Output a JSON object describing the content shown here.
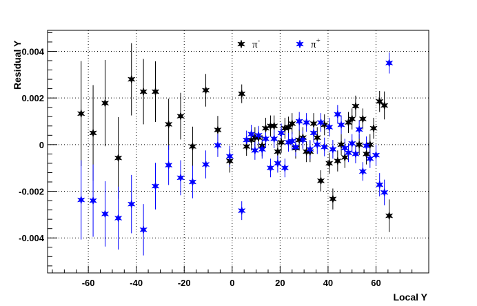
{
  "chart_data": {
    "type": "scatter",
    "xlabel": "Local Y",
    "ylabel": "Residual Y",
    "xlim": [
      -77,
      82
    ],
    "ylim": [
      -0.0055,
      0.0049
    ],
    "x_ticks": [
      -60,
      -40,
      -20,
      0,
      20,
      40,
      60
    ],
    "x_tick_labels": [
      "-60",
      "-40",
      "-20",
      "0",
      "20",
      "40",
      "60"
    ],
    "y_ticks": [
      -0.004,
      -0.002,
      0,
      0.002,
      0.004
    ],
    "y_tick_labels": [
      "-0.004",
      "-0.002",
      "0",
      "0.002",
      "0.004"
    ],
    "grid": true,
    "legend_position": "top-center",
    "series": [
      {
        "name": "π⁻",
        "legend": {
          "base": "π",
          "sup": "-"
        },
        "color": "#000000",
        "marker": "star",
        "points": [
          {
            "x": -63,
            "y": 0.00133,
            "err": 0.00225
          },
          {
            "x": -58,
            "y": 0.0005,
            "err": 0.00205
          },
          {
            "x": -53,
            "y": 0.00178,
            "err": 0.00185
          },
          {
            "x": -47.5,
            "y": -0.00057,
            "err": 0.00175
          },
          {
            "x": -42,
            "y": 0.0028,
            "err": 0.00155
          },
          {
            "x": -37,
            "y": 0.00227,
            "err": 0.0014
          },
          {
            "x": -32,
            "y": 0.00227,
            "err": 0.0013
          },
          {
            "x": -26.5,
            "y": 0.00087,
            "err": 0.0011
          },
          {
            "x": -21.5,
            "y": 0.00122,
            "err": 0.001
          },
          {
            "x": -16.5,
            "y": -8e-05,
            "err": 0.00085
          },
          {
            "x": -11,
            "y": 0.00233,
            "err": 0.0007
          },
          {
            "x": -6,
            "y": 0.00063,
            "err": 0.0006
          },
          {
            "x": -1,
            "y": -0.0007,
            "err": 0.0005
          },
          {
            "x": 4,
            "y": 0.00218,
            "err": 0.0004
          },
          {
            "x": 6,
            "y": -8e-05,
            "err": 0.0004
          },
          {
            "x": 8,
            "y": 0.0002,
            "err": 0.00045
          },
          {
            "x": 9.5,
            "y": 0.0003,
            "err": 0.00045
          },
          {
            "x": 11,
            "y": 0.0003,
            "err": 0.00045
          },
          {
            "x": 12.5,
            "y": -5e-05,
            "err": 0.00045
          },
          {
            "x": 14,
            "y": 0.0007,
            "err": 0.00045
          },
          {
            "x": 16,
            "y": 0.0008,
            "err": 0.00045
          },
          {
            "x": 17.5,
            "y": 0.0008,
            "err": 0.00045
          },
          {
            "x": 19,
            "y": -0.0003,
            "err": 0.00045
          },
          {
            "x": 20.5,
            "y": 0.0001,
            "err": 0.00045
          },
          {
            "x": 22,
            "y": 0.0007,
            "err": 0.00045
          },
          {
            "x": 23.5,
            "y": 0.00075,
            "err": 0.00045
          },
          {
            "x": 25,
            "y": 0.0009,
            "err": 0.00045
          },
          {
            "x": 26.5,
            "y": -0.00015,
            "err": 0.00045
          },
          {
            "x": 28,
            "y": 0.0002,
            "err": 0.00045
          },
          {
            "x": 29.5,
            "y": 0.0003,
            "err": 0.00045
          },
          {
            "x": 31,
            "y": -0.0003,
            "err": 0.00045
          },
          {
            "x": 32.5,
            "y": -0.0003,
            "err": 0.00045
          },
          {
            "x": 34,
            "y": 0.0009,
            "err": 0.00045
          },
          {
            "x": 35.5,
            "y": 0.0003,
            "err": 0.00045
          },
          {
            "x": 37,
            "y": -0.00155,
            "err": 0.00045
          },
          {
            "x": 38.5,
            "y": 0.00085,
            "err": 0.00045
          },
          {
            "x": 40.5,
            "y": -0.0008,
            "err": 0.00045
          },
          {
            "x": 42,
            "y": -0.00233,
            "err": 0.00045
          },
          {
            "x": 44,
            "y": -0.0007,
            "err": 0.00045
          },
          {
            "x": 45.5,
            "y": 0.0,
            "err": 0.00045
          },
          {
            "x": 47,
            "y": -0.00055,
            "err": 0.00045
          },
          {
            "x": 48.5,
            "y": 0.00095,
            "err": 0.00045
          },
          {
            "x": 50,
            "y": 0.0011,
            "err": 0.00045
          },
          {
            "x": 51.5,
            "y": 0.00165,
            "err": 0.00045
          },
          {
            "x": 53,
            "y": 0.0,
            "err": 0.00045
          },
          {
            "x": 54.5,
            "y": 0.0011,
            "err": 0.00045
          },
          {
            "x": 56,
            "y": -0.0004,
            "err": 0.00045
          },
          {
            "x": 57.5,
            "y": 0.0,
            "err": 0.00045
          },
          {
            "x": 59,
            "y": 0.0007,
            "err": 0.00045
          },
          {
            "x": 61.5,
            "y": 0.00185,
            "err": 0.00045
          },
          {
            "x": 63.5,
            "y": 0.00168,
            "err": 0.0006
          },
          {
            "x": 65.5,
            "y": -0.00305,
            "err": 0.0007
          }
        ]
      },
      {
        "name": "π⁺",
        "legend": {
          "base": "π",
          "sup": "+"
        },
        "color": "#0000ff",
        "marker": "star",
        "points": [
          {
            "x": -63,
            "y": -0.00237,
            "err": 0.0017
          },
          {
            "x": -58,
            "y": -0.0024,
            "err": 0.00155
          },
          {
            "x": -53,
            "y": -0.00297,
            "err": 0.0014
          },
          {
            "x": -47.5,
            "y": -0.00315,
            "err": 0.00135
          },
          {
            "x": -42,
            "y": -0.00255,
            "err": 0.00125
          },
          {
            "x": -37,
            "y": -0.00365,
            "err": 0.0011
          },
          {
            "x": -32,
            "y": -0.00178,
            "err": 0.001
          },
          {
            "x": -26.5,
            "y": -0.00088,
            "err": 0.00085
          },
          {
            "x": -21.5,
            "y": -0.00142,
            "err": 0.00075
          },
          {
            "x": -16.5,
            "y": -0.0016,
            "err": 0.0007
          },
          {
            "x": -11,
            "y": -0.00085,
            "err": 0.0006
          },
          {
            "x": -6,
            "y": -3e-05,
            "err": 0.0005
          },
          {
            "x": -1,
            "y": -0.0005,
            "err": 0.00045
          },
          {
            "x": 4,
            "y": -0.00283,
            "err": 0.0004
          },
          {
            "x": 6,
            "y": 0.0002,
            "err": 0.0004
          },
          {
            "x": 8,
            "y": 0.00045,
            "err": 0.0004
          },
          {
            "x": 9.5,
            "y": -0.00025,
            "err": 0.0004
          },
          {
            "x": 11,
            "y": 0.0004,
            "err": 0.0004
          },
          {
            "x": 12.5,
            "y": -0.0002,
            "err": 0.0004
          },
          {
            "x": 14,
            "y": 0.00025,
            "err": 0.0004
          },
          {
            "x": 16,
            "y": -0.001,
            "err": 0.0004
          },
          {
            "x": 17.5,
            "y": 0.00025,
            "err": 0.0004
          },
          {
            "x": 19,
            "y": -0.0008,
            "err": 0.0004
          },
          {
            "x": 20.5,
            "y": 0.0005,
            "err": 0.0004
          },
          {
            "x": 22,
            "y": -0.001,
            "err": 0.0004
          },
          {
            "x": 23.5,
            "y": 0.0001,
            "err": 0.0004
          },
          {
            "x": 25,
            "y": 0.00015,
            "err": 0.0004
          },
          {
            "x": 26.5,
            "y": -0.0001,
            "err": 0.0004
          },
          {
            "x": 28,
            "y": 0.001,
            "err": 0.0004
          },
          {
            "x": 29.5,
            "y": 0.0002,
            "err": 0.0004
          },
          {
            "x": 31,
            "y": 0.00095,
            "err": 0.0004
          },
          {
            "x": 32.5,
            "y": -0.0002,
            "err": 0.0004
          },
          {
            "x": 34,
            "y": 0.0005,
            "err": 0.0004
          },
          {
            "x": 35.5,
            "y": 0.0,
            "err": 0.0004
          },
          {
            "x": 37,
            "y": 0.00095,
            "err": 0.0004
          },
          {
            "x": 38.5,
            "y": -0.0001,
            "err": 0.0004
          },
          {
            "x": 40.5,
            "y": 0.00075,
            "err": 0.0004
          },
          {
            "x": 42,
            "y": -0.0002,
            "err": 0.0004
          },
          {
            "x": 44,
            "y": 0.0013,
            "err": 0.0004
          },
          {
            "x": 45.5,
            "y": 0.00085,
            "err": 0.0004
          },
          {
            "x": 47,
            "y": -0.00015,
            "err": 0.0004
          },
          {
            "x": 48.5,
            "y": -0.00035,
            "err": 0.0004
          },
          {
            "x": 50,
            "y": 5e-05,
            "err": 0.0004
          },
          {
            "x": 51.5,
            "y": -0.0004,
            "err": 0.0004
          },
          {
            "x": 53,
            "y": 0.00065,
            "err": 0.0004
          },
          {
            "x": 54.5,
            "y": -0.00115,
            "err": 0.0004
          },
          {
            "x": 56,
            "y": -5e-05,
            "err": 0.0004
          },
          {
            "x": 57.5,
            "y": -0.0006,
            "err": 0.0004
          },
          {
            "x": 60,
            "y": -0.00045,
            "err": 0.00045
          },
          {
            "x": 61.5,
            "y": -0.00172,
            "err": 0.0005
          },
          {
            "x": 63.5,
            "y": -0.00205,
            "err": 0.00055
          },
          {
            "x": 65.5,
            "y": 0.0035,
            "err": 0.00045
          }
        ]
      }
    ]
  }
}
